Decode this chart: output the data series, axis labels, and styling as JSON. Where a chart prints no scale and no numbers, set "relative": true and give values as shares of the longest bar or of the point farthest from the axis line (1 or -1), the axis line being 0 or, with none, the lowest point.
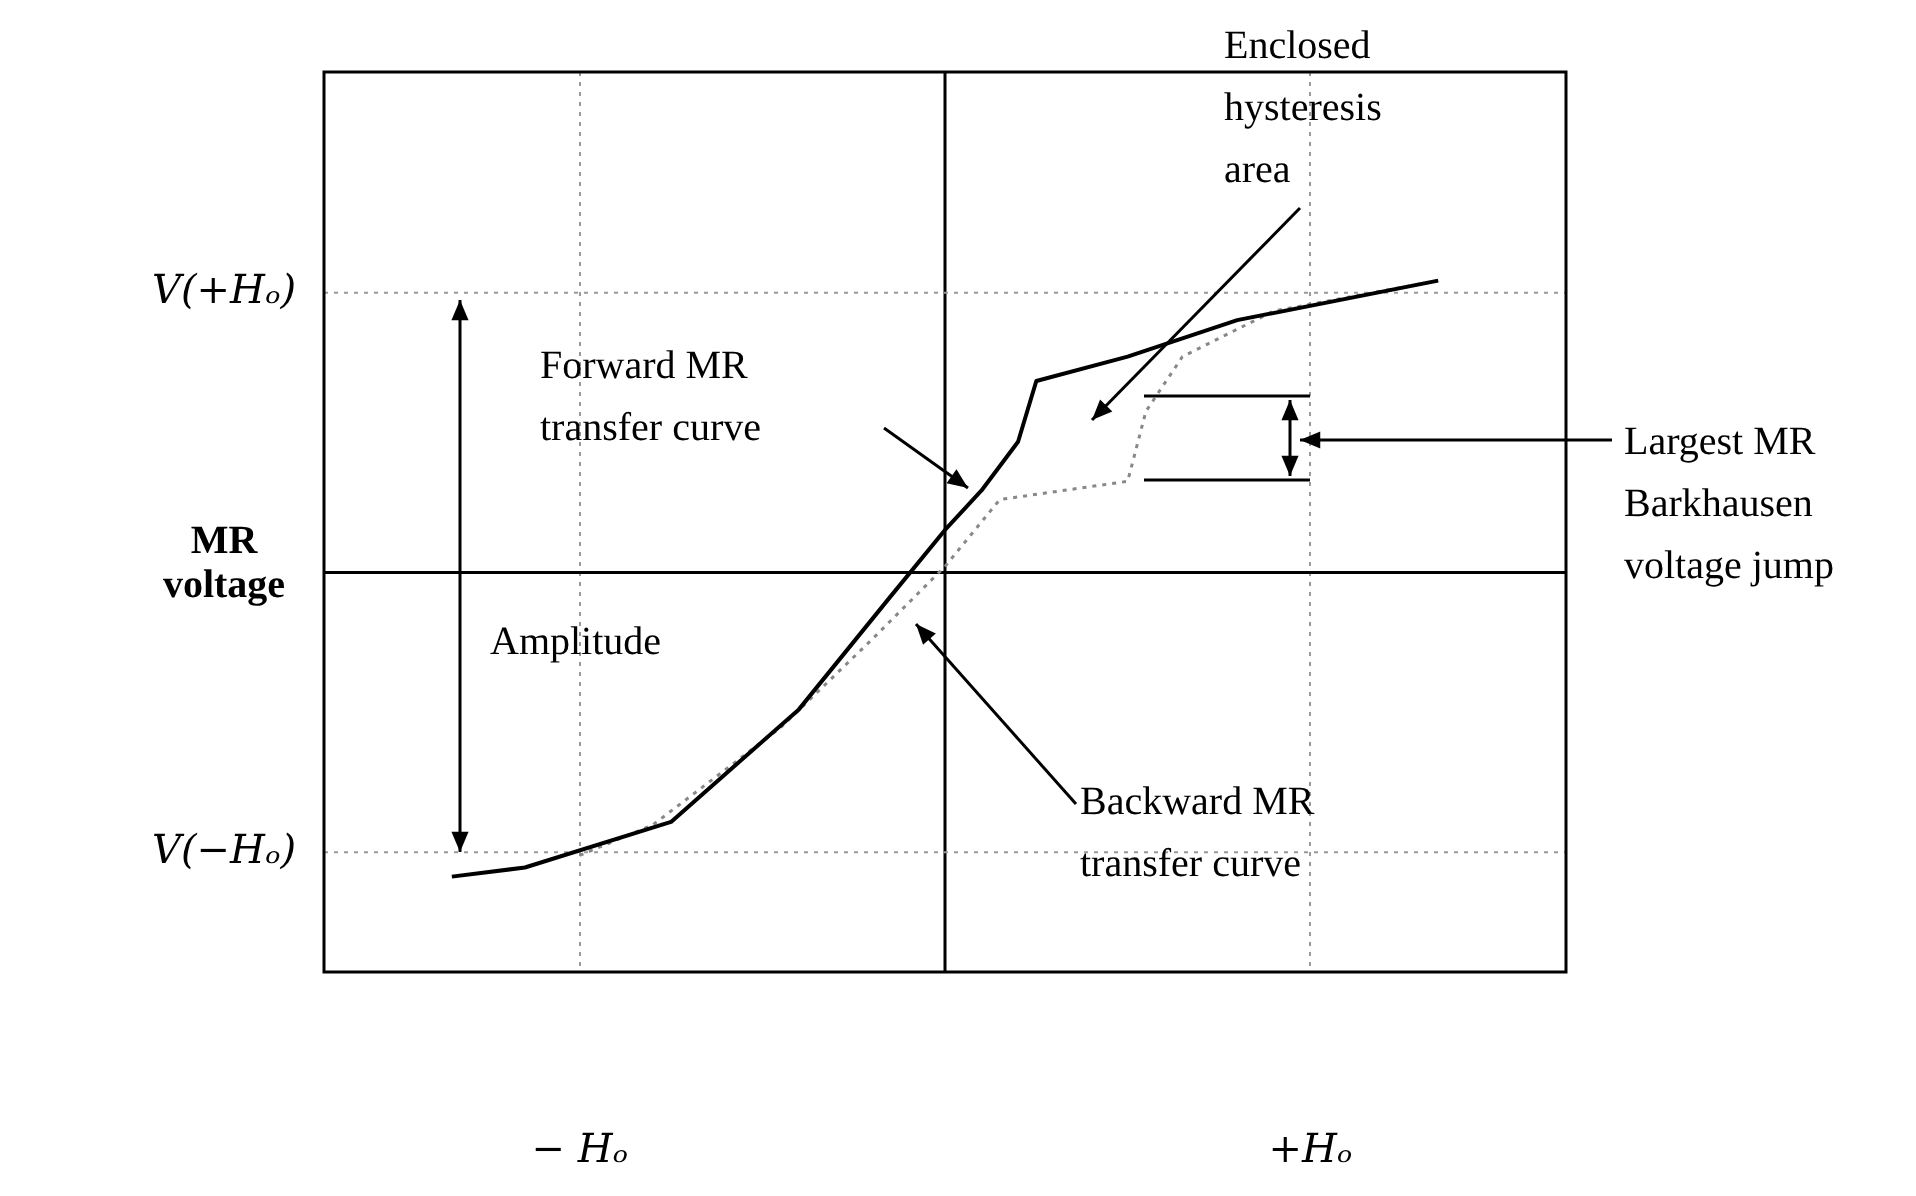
{
  "chart_data": {
    "type": "line",
    "ylabel": "MR voltage",
    "relative": true,
    "annotations": [
      "Enclosed hysteresis area",
      "Forward MR transfer curve",
      "Largest MR Barkhausen voltage jump",
      "Amplitude",
      "Backward MR transfer curve"
    ],
    "categories": [
      null,
      null,
      null,
      null,
      null,
      null,
      null,
      null,
      null,
      null,
      null,
      null,
      null,
      null,
      "− Hₒ",
      null,
      null,
      null,
      null,
      null,
      null,
      null,
      null,
      null,
      null,
      null,
      null,
      null,
      null,
      null,
      null,
      null,
      null,
      null,
      null,
      null,
      null,
      null,
      null,
      null,
      null,
      null,
      null,
      null,
      null,
      null,
      null,
      null,
      null,
      null,
      null,
      null,
      null,
      null,
      "+Hₒ",
      null,
      null,
      null,
      null,
      null,
      null,
      null,
      null,
      null,
      null,
      null,
      null,
      null,
      null
    ],
    "grid": "x",
    "marker": "none",
    "series": [
      {
        "color": "#000000",
        "line_style": "solid",
        "values": [
          null,
          null,
          null,
          null,
          null,
          null,
          null,
          -1,
          null,
          null,
          null,
          -0.97,
          null,
          null,
          null,
          null,
          null,
          null,
          null,
          -0.82,
          null,
          null,
          null,
          null,
          null,
          null,
          -0.45,
          null,
          null,
          null,
          null,
          -0.08,
          null,
          null,
          0.14,
          null,
          0.27,
          null,
          0.43,
          0.63,
          null,
          null,
          null,
          null,
          0.71,
          null,
          null,
          null,
          null,
          null,
          0.83,
          null,
          null,
          null,
          null,
          null,
          null,
          null,
          null,
          null,
          null,
          0.96,
          null,
          null,
          null,
          null,
          null,
          null,
          null
        ]
      },
      {
        "color": "#888888",
        "line_style": "dotted",
        "values": [
          null,
          null,
          null,
          null,
          null,
          null,
          null,
          null,
          null,
          null,
          null,
          null,
          null,
          null,
          -0.93,
          null,
          null,
          null,
          -0.83,
          null,
          null,
          null,
          null,
          null,
          null,
          -0.51,
          null,
          null,
          null,
          null,
          -0.22,
          null,
          null,
          null,
          0.02,
          null,
          null,
          0.24,
          null,
          null,
          null,
          null,
          null,
          null,
          0.3,
          0.53,
          null,
          0.71,
          null,
          null,
          null,
          null,
          0.86,
          null,
          null,
          null,
          null,
          null,
          null,
          null,
          null,
          0.96,
          null,
          null,
          null,
          null,
          null,
          null,
          null
        ]
      }
    ],
    "ref_lines": [
      {
        "axis": "y",
        "value": 0.92,
        "label": "V(+Hₒ)",
        "color": "#999999",
        "line_style": "dotted"
      },
      {
        "axis": "y",
        "value": -0.92,
        "label": "V(−Hₒ)",
        "color": "#999999",
        "line_style": "dotted"
      }
    ]
  }
}
